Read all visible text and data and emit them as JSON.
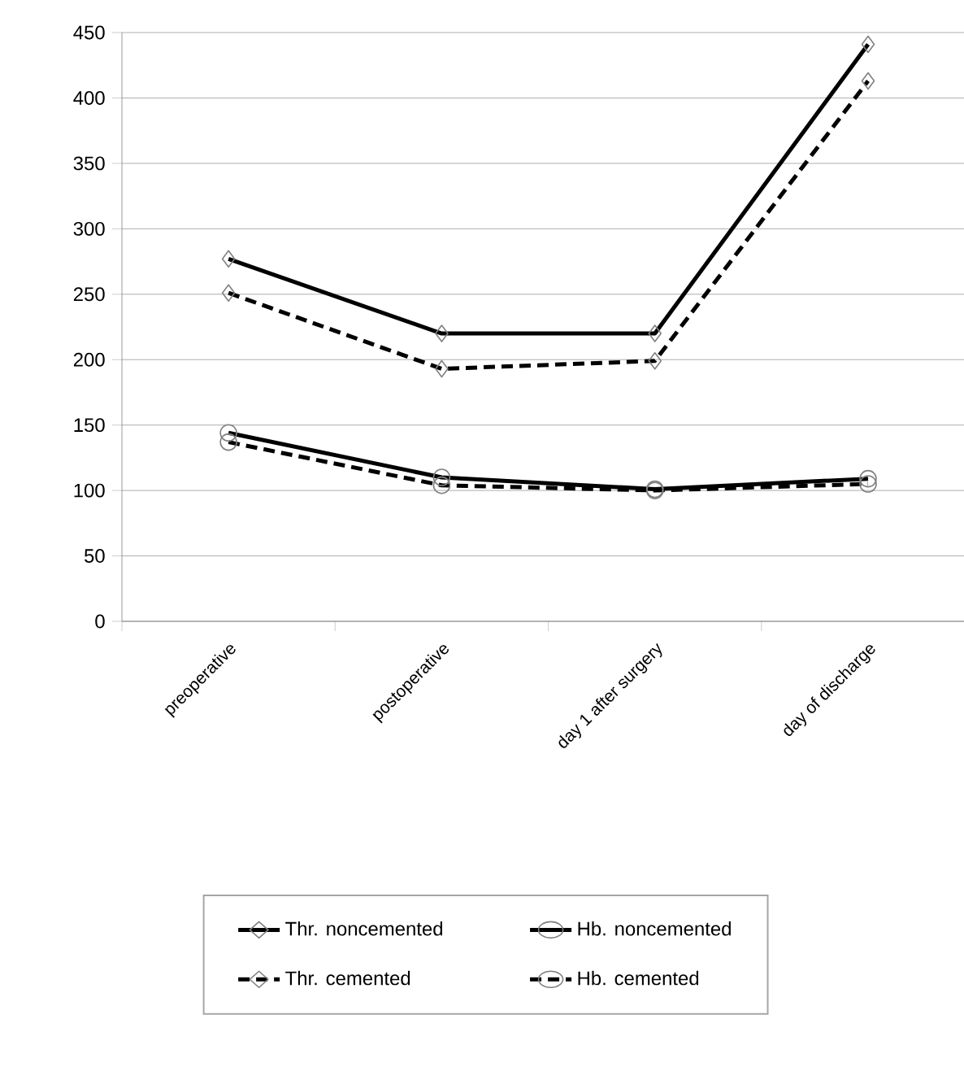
{
  "chart_data": {
    "type": "line",
    "categories": [
      "preoperative",
      "postoperative",
      "day 1 after surgery",
      "day of discharge"
    ],
    "series": [
      {
        "name": "Thr. noncemented",
        "color": "#000000",
        "marker": "diamond",
        "line_style": "solid",
        "values": [
          277,
          220,
          220,
          441
        ]
      },
      {
        "name": "Hb. noncemented",
        "color": "#000000",
        "marker": "circle",
        "line_style": "solid",
        "values": [
          144,
          110,
          101,
          109
        ]
      },
      {
        "name": "Thr. cemented",
        "color": "#000000",
        "marker": "diamond",
        "line_style": "dashed",
        "values": [
          251,
          193,
          199,
          413
        ]
      },
      {
        "name": "Hb. cemented",
        "color": "#000000",
        "marker": "circle",
        "line_style": "dashed",
        "values": [
          137,
          104,
          100,
          105
        ]
      }
    ],
    "ylim": [
      0,
      450
    ],
    "yticks": [
      0,
      50,
      100,
      150,
      200,
      250,
      300,
      350,
      400,
      450
    ],
    "grid": "y",
    "legend": "bottom"
  }
}
